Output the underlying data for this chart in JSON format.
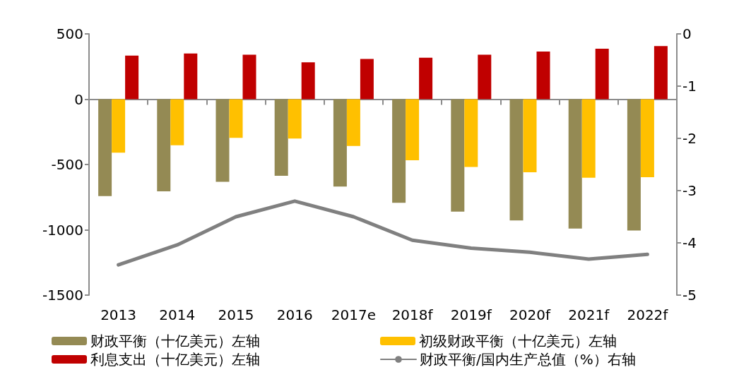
{
  "chart_data": {
    "type": "bar",
    "categories": [
      "2013",
      "2014",
      "2015",
      "2016",
      "2017e",
      "2018f",
      "2019f",
      "2020f",
      "2021f",
      "2022f"
    ],
    "series": [
      {
        "name": "财政平衡（十亿美元）左轴",
        "color": "#948a54",
        "values": [
          -742,
          -705,
          -633,
          -586,
          -669,
          -793,
          -861,
          -928,
          -990,
          -1006
        ]
      },
      {
        "name": "初级财政平衡（十亿美元）左轴",
        "color": "#ffc000",
        "values": [
          -410,
          -353,
          -296,
          -301,
          -358,
          -467,
          -519,
          -560,
          -602,
          -597
        ]
      },
      {
        "name": "利息支出（十亿美元）左轴",
        "color": "#c00000",
        "values": [
          334,
          350,
          340,
          282,
          308,
          318,
          340,
          365,
          386,
          407
        ]
      },
      {
        "name": "财政平衡/国内生产总值（%）右轴",
        "type": "line",
        "axis": "y2",
        "color": "#808080",
        "values": [
          -4.42,
          -4.04,
          -3.5,
          -3.2,
          -3.5,
          -3.95,
          -4.1,
          -4.18,
          -4.31,
          -4.22
        ]
      }
    ],
    "ylim": [
      -1500,
      500
    ],
    "yticks": [
      -1500,
      -1000,
      -500,
      0,
      500
    ],
    "y2lim": [
      -5,
      0
    ],
    "y2ticks": [
      -5,
      -4,
      -3,
      -2,
      -1,
      0
    ],
    "legend": "bottom",
    "marker": "none",
    "line_style": "solid"
  }
}
